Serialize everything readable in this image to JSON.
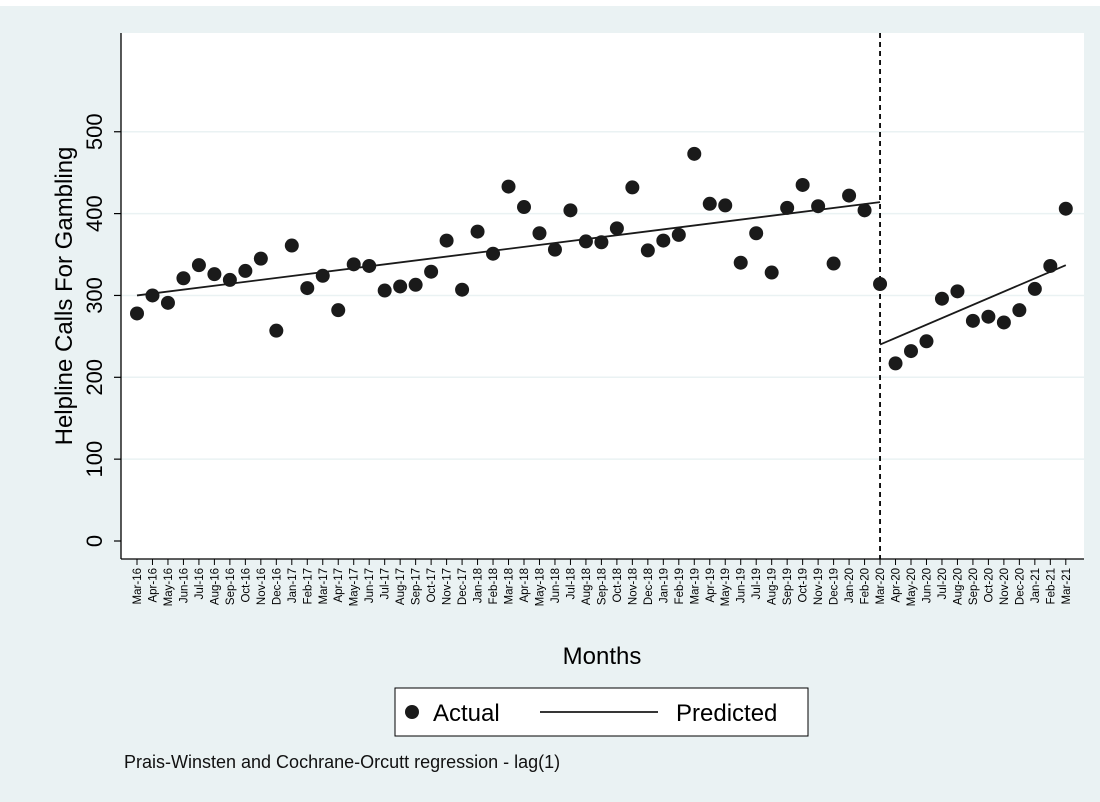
{
  "colors": {
    "outer_bg": "#eaf2f3",
    "plot_bg": "#ffffff",
    "gridline": "#eaf2f3",
    "marker": "#1a1a1a",
    "line": "#1a1a1a"
  },
  "note": "Prais-Winsten and Cochrane-Orcutt regression - lag(1)",
  "chart_data": {
    "type": "scatter",
    "title": "",
    "xlabel": "Months",
    "ylabel": "Helpline Calls For Gambling",
    "ylim": [
      0,
      600
    ],
    "yticks": [
      0,
      100,
      200,
      300,
      400,
      500
    ],
    "grid": true,
    "legend_position": "bottom",
    "interruption_at": "Mar-20",
    "months": [
      "Mar-16",
      "Apr-16",
      "May-16",
      "Jun-16",
      "Jul-16",
      "Aug-16",
      "Sep-16",
      "Oct-16",
      "Nov-16",
      "Dec-16",
      "Jan-17",
      "Feb-17",
      "Mar-17",
      "Apr-17",
      "May-17",
      "Jun-17",
      "Jul-17",
      "Aug-17",
      "Sep-17",
      "Oct-17",
      "Nov-17",
      "Dec-17",
      "Jan-18",
      "Feb-18",
      "Mar-18",
      "Apr-18",
      "May-18",
      "Jun-18",
      "Jul-18",
      "Aug-18",
      "Sep-18",
      "Oct-18",
      "Nov-18",
      "Dec-18",
      "Jan-19",
      "Feb-19",
      "Mar-19",
      "Apr-19",
      "May-19",
      "Jun-19",
      "Jul-19",
      "Aug-19",
      "Sep-19",
      "Oct-19",
      "Nov-19",
      "Dec-19",
      "Jan-20",
      "Feb-20",
      "Mar-20",
      "Apr-20",
      "May-20",
      "Jun-20",
      "Jul-20",
      "Aug-20",
      "Sep-20",
      "Oct-20",
      "Nov-20",
      "Dec-20",
      "Jan-21",
      "Feb-21",
      "Mar-21"
    ],
    "series": [
      {
        "name": "Actual",
        "kind": "points",
        "values": [
          278,
          300,
          291,
          321,
          337,
          326,
          319,
          330,
          345,
          257,
          361,
          309,
          324,
          282,
          338,
          336,
          306,
          311,
          313,
          329,
          367,
          307,
          378,
          351,
          433,
          408,
          376,
          356,
          404,
          366,
          365,
          382,
          432,
          355,
          367,
          374,
          473,
          412,
          410,
          340,
          376,
          328,
          407,
          435,
          409,
          339,
          422,
          404,
          314,
          217,
          232,
          244,
          296,
          305,
          269,
          274,
          267,
          282,
          308,
          336,
          406
        ]
      },
      {
        "name": "Predicted",
        "kind": "line",
        "segments": [
          {
            "from": "Mar-16",
            "to": "Mar-20",
            "y_start": 300,
            "y_end": 414
          },
          {
            "from": "Mar-20",
            "to": "Mar-21",
            "y_start": 240,
            "y_end": 337
          }
        ]
      }
    ]
  }
}
